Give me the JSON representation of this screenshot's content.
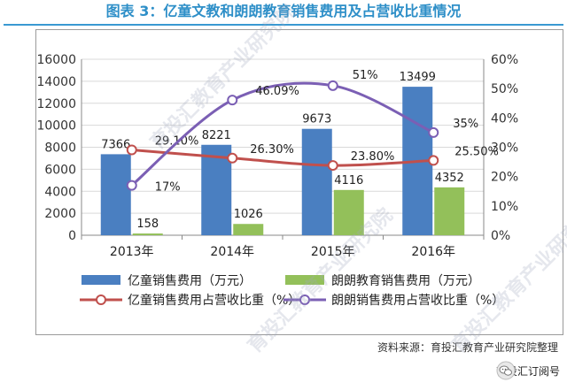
{
  "title": "图表 3：亿童文教和朗朗教育销售费用及占营收比重情况",
  "source": "资料来源：育投汇教育产业研究院整理",
  "wechat_label": "育投汇订阅号",
  "watermark": "育投汇教育产业研究院",
  "colors": {
    "bar1": "#4a7fc1",
    "bar2": "#93c05a",
    "line1": "#c0504d",
    "line2": "#7b5fb4",
    "title": "#2e8fc8"
  },
  "chart_data": {
    "type": "bar",
    "categories": [
      "2013年",
      "2014年",
      "2015年",
      "2016年"
    ],
    "y_left_ticks": [
      "0",
      "2000",
      "4000",
      "6000",
      "8000",
      "10000",
      "12000",
      "14000",
      "16000"
    ],
    "y_right_ticks": [
      "0%",
      "10%",
      "20%",
      "30%",
      "40%",
      "50%",
      "60%"
    ],
    "ylim_left": [
      0,
      16000
    ],
    "ylim_right": [
      0,
      60
    ],
    "bar_series": [
      {
        "name": "亿童销售费用（万元）",
        "values": [
          7366,
          8221,
          9673,
          13499
        ],
        "labels": [
          "7366",
          "8221",
          "9673",
          "13499"
        ]
      },
      {
        "name": "朗朗教育销售费用（万元）",
        "values": [
          158,
          1026,
          4116,
          4352
        ],
        "labels": [
          "158",
          "1026",
          "4116",
          "4352"
        ]
      }
    ],
    "line_series": [
      {
        "name": "亿童销售费用占营收比重（%）",
        "values": [
          29.1,
          26.3,
          23.8,
          25.5
        ],
        "labels": [
          "29.10%",
          "26.30%",
          "23.80%",
          "25.50%"
        ]
      },
      {
        "name": "朗朗销售费用占营收比重（%）",
        "values": [
          17,
          46.09,
          51,
          35
        ],
        "labels": [
          "17%",
          "46.09%",
          "51%",
          "35%"
        ]
      }
    ],
    "grid": true,
    "legend_position": "bottom"
  }
}
